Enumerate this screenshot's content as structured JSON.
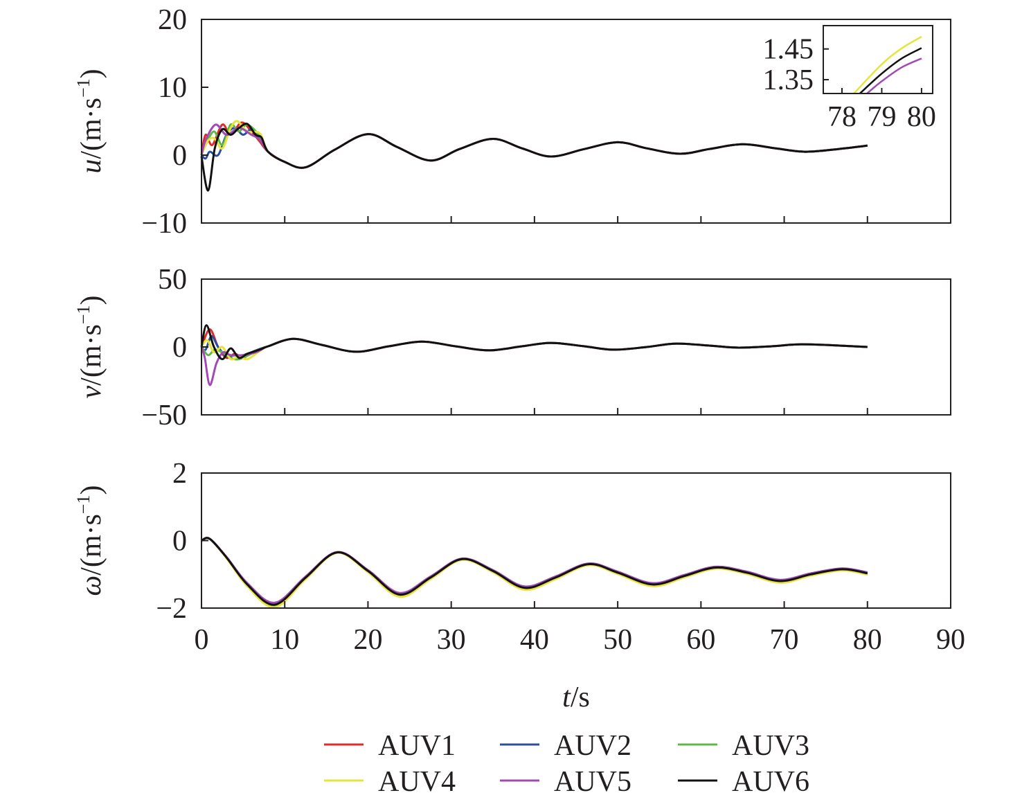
{
  "chart_data": {
    "type": "line",
    "xlabel_var": "t",
    "xlabel_unit": "/s",
    "xlim": [
      0,
      90
    ],
    "xticks": [
      "0",
      "10",
      "20",
      "30",
      "40",
      "50",
      "60",
      "70",
      "80",
      "90"
    ],
    "legend": {
      "placement": "bottom",
      "entries": [
        "AUV1",
        "AUV2",
        "AUV3",
        "AUV4",
        "AUV5",
        "AUV6"
      ]
    },
    "colors": {
      "AUV1": "#e02a27",
      "AUV2": "#2b4ea0",
      "AUV3": "#5cb946",
      "AUV4": "#e8e33a",
      "AUV5": "#a149b5",
      "AUV6": "#111111"
    },
    "panels": [
      {
        "id": "u",
        "ylabel_var": "u",
        "ylabel_unit": "/(m·s",
        "ylabel_exp": "−1",
        "ylabel_close": ")",
        "ylim": [
          -10,
          20
        ],
        "yticks": [
          {
            "v": 20,
            "label": "20"
          },
          {
            "v": 10,
            "label": "10"
          },
          {
            "v": 0,
            "label": "0"
          },
          {
            "v": -10,
            "label": "−10"
          }
        ],
        "tail": [
          [
            8,
            0.5
          ],
          [
            10,
            -1.0
          ],
          [
            12.5,
            -1.8
          ],
          [
            16,
            0.8
          ],
          [
            20,
            3.1
          ],
          [
            23.5,
            1.2
          ],
          [
            27.5,
            -0.8
          ],
          [
            31,
            0.9
          ],
          [
            35,
            2.4
          ],
          [
            38.5,
            1.0
          ],
          [
            42,
            -0.2
          ],
          [
            46,
            0.9
          ],
          [
            50,
            1.9
          ],
          [
            53.5,
            1.0
          ],
          [
            57.5,
            0.2
          ],
          [
            61,
            0.9
          ],
          [
            65,
            1.6
          ],
          [
            69,
            1.0
          ],
          [
            72.5,
            0.5
          ],
          [
            76.5,
            0.9
          ],
          [
            80,
            1.4
          ]
        ],
        "series": [
          {
            "name": "AUV1",
            "early": [
              [
                0,
                0
              ],
              [
                0.5,
                3
              ],
              [
                1.3,
                1.5
              ],
              [
                2.5,
                4.5
              ],
              [
                3.5,
                3
              ],
              [
                4.8,
                4.8
              ],
              [
                6,
                3.5
              ],
              [
                7,
                2
              ]
            ]
          },
          {
            "name": "AUV2",
            "early": [
              [
                0,
                0
              ],
              [
                0.5,
                -0.5
              ],
              [
                1,
                0.5
              ],
              [
                2,
                0
              ],
              [
                3,
                3
              ],
              [
                4,
                4
              ],
              [
                5,
                3
              ],
              [
                6,
                3.8
              ],
              [
                7,
                2.5
              ]
            ]
          },
          {
            "name": "AUV3",
            "early": [
              [
                0,
                0
              ],
              [
                0.5,
                1.5
              ],
              [
                1.5,
                3.5
              ],
              [
                2.5,
                1.5
              ],
              [
                3.5,
                4.5
              ],
              [
                4.5,
                3.5
              ],
              [
                5.5,
                4.5
              ],
              [
                7,
                2.8
              ]
            ]
          },
          {
            "name": "AUV4",
            "early": [
              [
                0,
                0
              ],
              [
                0.7,
                2
              ],
              [
                1.5,
                2.5
              ],
              [
                2.5,
                1
              ],
              [
                3.5,
                4
              ],
              [
                4.3,
                5
              ],
              [
                5.5,
                3.5
              ],
              [
                7,
                3.2
              ]
            ]
          },
          {
            "name": "AUV5",
            "early": [
              [
                0,
                0
              ],
              [
                0.5,
                2.2
              ],
              [
                1.7,
                4.5
              ],
              [
                3,
                3
              ],
              [
                4.5,
                4
              ],
              [
                6,
                3
              ],
              [
                7,
                2.3
              ]
            ]
          },
          {
            "name": "AUV6",
            "early": [
              [
                0,
                -0.2
              ],
              [
                0.8,
                -5.2
              ],
              [
                1.6,
                1
              ],
              [
                2.5,
                3.8
              ],
              [
                3.5,
                3
              ],
              [
                4.5,
                4
              ],
              [
                5.5,
                4.6
              ],
              [
                6.5,
                3
              ],
              [
                7.2,
                2.6
              ]
            ]
          }
        ],
        "inset": {
          "xlim": [
            77.53,
            80.28
          ],
          "ylim": [
            1.305,
            1.526
          ],
          "xticks": [
            "78",
            "79",
            "80"
          ],
          "yticks": [
            {
              "v": 1.45,
              "label": "1.45"
            },
            {
              "v": 1.35,
              "label": "1.35"
            }
          ],
          "series": [
            {
              "name": "AUV4",
              "points": [
                [
                  78.3,
                  1.305
                ],
                [
                  79,
                  1.4
                ],
                [
                  79.5,
                  1.452
                ],
                [
                  80,
                  1.49
                ]
              ]
            },
            {
              "name": "AUV6",
              "points": [
                [
                  78.45,
                  1.305
                ],
                [
                  79,
                  1.37
                ],
                [
                  79.5,
                  1.419
                ],
                [
                  80,
                  1.453
                ]
              ]
            },
            {
              "name": "AUV5",
              "points": [
                [
                  78.63,
                  1.305
                ],
                [
                  79,
                  1.345
                ],
                [
                  79.5,
                  1.39
                ],
                [
                  80,
                  1.419
                ]
              ]
            }
          ]
        }
      },
      {
        "id": "v",
        "ylabel_var": "v",
        "ylabel_unit": "/(m·s",
        "ylabel_exp": "−1",
        "ylabel_close": ")",
        "ylim": [
          -50,
          50
        ],
        "yticks": [
          {
            "v": 50,
            "label": "50"
          },
          {
            "v": 0,
            "label": "0"
          },
          {
            "v": -50,
            "label": "−50"
          }
        ],
        "tail": [
          [
            8,
            0.5
          ],
          [
            11,
            6
          ],
          [
            14.5,
            1.5
          ],
          [
            18.5,
            -3.5
          ],
          [
            22.5,
            0.5
          ],
          [
            26.5,
            4
          ],
          [
            30.5,
            0.5
          ],
          [
            34.5,
            -2.5
          ],
          [
            38.5,
            0.5
          ],
          [
            42,
            3
          ],
          [
            46,
            0.5
          ],
          [
            49.5,
            -2
          ],
          [
            53.5,
            0
          ],
          [
            57,
            2.5
          ],
          [
            61,
            1
          ],
          [
            64.5,
            -0.5
          ],
          [
            68.5,
            0.5
          ],
          [
            72,
            2
          ],
          [
            76,
            1.2
          ],
          [
            80,
            0
          ]
        ],
        "series": [
          {
            "name": "AUV1",
            "early": [
              [
                0,
                0
              ],
              [
                1,
                13
              ],
              [
                2,
                0
              ],
              [
                3,
                -8
              ],
              [
                4,
                -5
              ],
              [
                5,
                -8
              ],
              [
                6,
                -4
              ],
              [
                7,
                -1.5
              ]
            ]
          },
          {
            "name": "AUV2",
            "early": [
              [
                0,
                0
              ],
              [
                0.5,
                -2
              ],
              [
                1.2,
                8
              ],
              [
                2,
                0
              ],
              [
                3,
                -7
              ],
              [
                4,
                -6
              ],
              [
                5,
                -6
              ],
              [
                7,
                -1.5
              ]
            ]
          },
          {
            "name": "AUV3",
            "early": [
              [
                0,
                0
              ],
              [
                0.8,
                -6
              ],
              [
                1.6,
                -2
              ],
              [
                2.5,
                -4
              ],
              [
                3.5,
                -8
              ],
              [
                4.5,
                -9
              ],
              [
                6,
                -5
              ],
              [
                7,
                -2
              ]
            ]
          },
          {
            "name": "AUV4",
            "early": [
              [
                0,
                0
              ],
              [
                0.7,
                5
              ],
              [
                1.5,
                -4
              ],
              [
                2.5,
                0
              ],
              [
                3.5,
                -9
              ],
              [
                4.5,
                -7
              ],
              [
                5.5,
                -9
              ],
              [
                7,
                -3
              ]
            ]
          },
          {
            "name": "AUV5",
            "early": [
              [
                0,
                0
              ],
              [
                0.4,
                -8
              ],
              [
                1,
                -28
              ],
              [
                1.8,
                -12
              ],
              [
                2.6,
                -4
              ],
              [
                3.5,
                -6
              ],
              [
                5,
                -6
              ],
              [
                6.5,
                -4
              ],
              [
                7.3,
                -1.5
              ]
            ]
          },
          {
            "name": "AUV6",
            "early": [
              [
                0,
                0
              ],
              [
                0.6,
                16
              ],
              [
                1.5,
                0
              ],
              [
                2.5,
                -9
              ],
              [
                3.5,
                -1
              ],
              [
                4.5,
                -8
              ],
              [
                5.5,
                -5
              ],
              [
                6.5,
                -3
              ],
              [
                7.3,
                -1.2
              ]
            ]
          }
        ]
      },
      {
        "id": "w",
        "ylabel_var": "ω",
        "ylabel_unit": "/(m·s",
        "ylabel_exp": "−1",
        "ylabel_close": ")",
        "ylim": [
          -2,
          2
        ],
        "yticks": [
          {
            "v": 2,
            "label": "2"
          },
          {
            "v": 0,
            "label": "0"
          },
          {
            "v": -2,
            "label": "−2"
          }
        ],
        "tail": [
          [
            0,
            0
          ],
          [
            1,
            0.05
          ],
          [
            3,
            -0.5
          ],
          [
            5.5,
            -1.3
          ],
          [
            8.8,
            -1.9
          ],
          [
            12.5,
            -1.1
          ],
          [
            16.3,
            -0.35
          ],
          [
            20,
            -0.9
          ],
          [
            23.8,
            -1.6
          ],
          [
            27.5,
            -1.1
          ],
          [
            31.3,
            -0.55
          ],
          [
            35,
            -0.9
          ],
          [
            38.8,
            -1.4
          ],
          [
            42.5,
            -1.1
          ],
          [
            46.5,
            -0.7
          ],
          [
            50,
            -0.95
          ],
          [
            54.2,
            -1.3
          ],
          [
            58,
            -1.05
          ],
          [
            61.8,
            -0.8
          ],
          [
            65.5,
            -0.95
          ],
          [
            69.5,
            -1.2
          ],
          [
            73.2,
            -1.0
          ],
          [
            77,
            -0.85
          ],
          [
            80,
            -0.97
          ]
        ],
        "series": [
          {
            "name": "AUV1",
            "scale": 1.01,
            "early": []
          },
          {
            "name": "AUV2",
            "scale": 1.0,
            "early": []
          },
          {
            "name": "AUV3",
            "scale": 1.02,
            "early": []
          },
          {
            "name": "AUV4",
            "scale": 1.04,
            "early": []
          },
          {
            "name": "AUV5",
            "scale": 0.97,
            "early": []
          },
          {
            "name": "AUV6",
            "scale": 1.0,
            "early": []
          }
        ]
      }
    ]
  }
}
